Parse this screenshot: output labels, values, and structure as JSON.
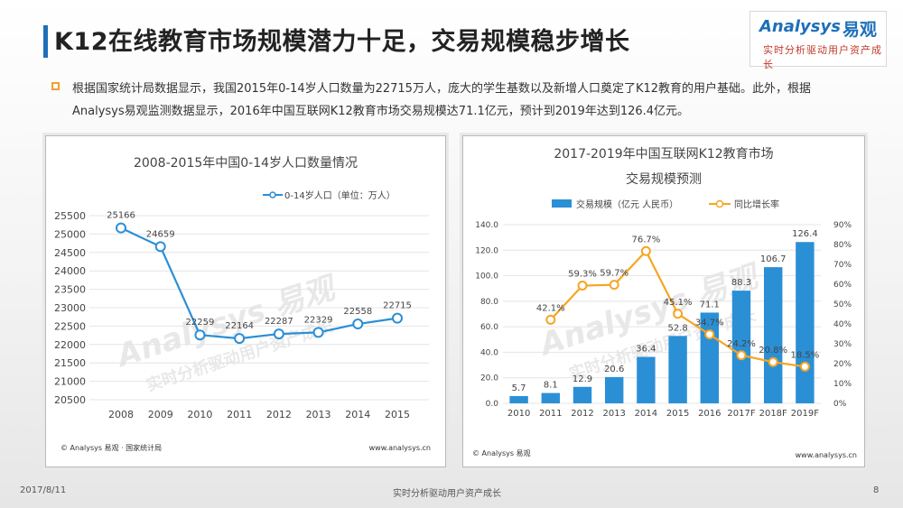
{
  "header": {
    "title": "K12在线教育市场规模潜力十足，交易规模稳步增长",
    "intro": "根据国家统计局数据显示，我国2015年0-14岁人口数量为22715万人，庞大的学生基数以及新增人口奠定了K12教育的用户基础。此外，根据Analysys易观监测数据显示，2016年中国互联网K12教育市场交易规模达71.1亿元，预计到2019年达到126.4亿元。"
  },
  "logo": {
    "name": "Analysys",
    "cn": "易观",
    "slogan": "实时分析驱动用户资产成长"
  },
  "watermark": {
    "name": "Analysys 易观",
    "slogan": "实时分析驱动用户资产成长"
  },
  "colors": {
    "accent": "#1d6fb8",
    "line": "#2b8fd6",
    "orange": "#f5a623",
    "bullet": "#f0a030"
  },
  "chart_data": [
    {
      "type": "line",
      "title": "2008-2015年中国0-14岁人口数量情况",
      "categories": [
        "2008",
        "2009",
        "2010",
        "2011",
        "2012",
        "2013",
        "2014",
        "2015"
      ],
      "series": [
        {
          "name": "0-14岁人口（单位：万人）",
          "values": [
            25166,
            24659,
            22259,
            22164,
            22287,
            22329,
            22558,
            22715
          ]
        }
      ],
      "ylim": [
        20500,
        25500
      ],
      "yticks": [
        20500,
        21000,
        21500,
        22000,
        22500,
        23000,
        23500,
        24000,
        24500,
        25000,
        25500
      ],
      "legend": "top-right",
      "source": "© Analysys 易观 · 国家统计局",
      "site": "www.analysys.cn"
    },
    {
      "type": "bar",
      "title": [
        "2017-2019年中国互联网K12教育市场",
        "交易规模预测"
      ],
      "categories": [
        "2010",
        "2011",
        "2012",
        "2013",
        "2014",
        "2015",
        "2016",
        "2017F",
        "2018F",
        "2019F"
      ],
      "series": [
        {
          "name": "交易规模（亿元 人民币）",
          "type": "bar",
          "values": [
            5.7,
            8.1,
            12.9,
            20.6,
            36.4,
            52.8,
            71.1,
            88.3,
            106.7,
            126.4
          ]
        },
        {
          "name": "同比增长率",
          "type": "line",
          "axis": "right",
          "values": [
            null,
            42.1,
            59.3,
            59.7,
            76.7,
            45.1,
            34.7,
            24.2,
            20.8,
            18.5
          ],
          "labels": [
            "",
            "42.1%",
            "59.3%",
            "59.7%",
            "76.7%",
            "45.1%",
            "34.7%",
            "24.2%",
            "20.8%",
            "18.5%"
          ]
        }
      ],
      "ylim": [
        0,
        140
      ],
      "yticks": [
        "0.0",
        "20.0",
        "40.0",
        "60.0",
        "80.0",
        "100.0",
        "120.0",
        "140.0"
      ],
      "y2lim": [
        0,
        90
      ],
      "y2ticks": [
        "0%",
        "10%",
        "20%",
        "30%",
        "40%",
        "50%",
        "60%",
        "70%",
        "80%",
        "90%"
      ],
      "legend": "top",
      "source": "© Analysys 易观",
      "site": "www.analysys.cn"
    }
  ],
  "footer": {
    "date": "2017/8/11",
    "center": "实时分析驱动用户资产成长",
    "page": "8"
  }
}
